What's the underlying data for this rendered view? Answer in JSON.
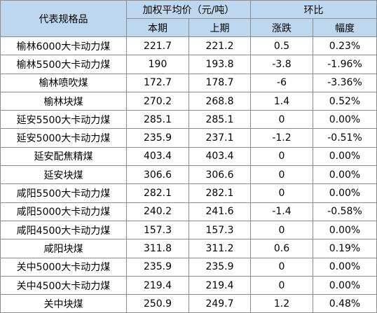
{
  "header": {
    "name_col": "代表规格品",
    "price_group": "加权平均价（元/吨）",
    "change_group": "环比",
    "current": "本期",
    "previous": "上期",
    "change": "涨跌",
    "pct": "幅度"
  },
  "rows": [
    {
      "name": "榆林6000大卡动力煤",
      "current": "221.7",
      "previous": "221.2",
      "change": "0.5",
      "pct": "0.23%"
    },
    {
      "name": "榆林5500大卡动力煤",
      "current": "190",
      "previous": "193.8",
      "change": "-3.8",
      "pct": "-1.96%"
    },
    {
      "name": "榆林喷吹煤",
      "current": "172.7",
      "previous": "178.7",
      "change": "-6",
      "pct": "-3.36%"
    },
    {
      "name": "榆林块煤",
      "current": "270.2",
      "previous": "268.8",
      "change": "1.4",
      "pct": "0.52%"
    },
    {
      "name": "延安5500大卡动力煤",
      "current": "285.1",
      "previous": "285.1",
      "change": "0",
      "pct": "0.00%"
    },
    {
      "name": "延安5000大卡动力煤",
      "current": "235.9",
      "previous": "237.1",
      "change": "-1.2",
      "pct": "-0.51%"
    },
    {
      "name": "延安配焦精煤",
      "current": "403.4",
      "previous": "403.4",
      "change": "0",
      "pct": "0.00%"
    },
    {
      "name": "延安块煤",
      "current": "306.6",
      "previous": "306.6",
      "change": "0",
      "pct": "0.00%"
    },
    {
      "name": "咸阳5500大卡动力煤",
      "current": "282.1",
      "previous": "282.1",
      "change": "0",
      "pct": "0.00%"
    },
    {
      "name": "咸阳5000大卡动力煤",
      "current": "240.2",
      "previous": "241.6",
      "change": "-1.4",
      "pct": "-0.58%"
    },
    {
      "name": "咸阳4500大卡动力煤",
      "current": "157.3",
      "previous": "157.3",
      "change": "0",
      "pct": "0.00%"
    },
    {
      "name": "咸阳块煤",
      "current": "311.8",
      "previous": "311.2",
      "change": "0.6",
      "pct": "0.19%"
    },
    {
      "name": "关中5000大卡动力煤",
      "current": "235.9",
      "previous": "235.9",
      "change": "0",
      "pct": "0.00%"
    },
    {
      "name": "关中4500大卡动力煤",
      "current": "219.4",
      "previous": "219.4",
      "change": "0",
      "pct": "0.00%"
    },
    {
      "name": "关中块煤",
      "current": "250.9",
      "previous": "249.7",
      "change": "1.2",
      "pct": "0.48%"
    }
  ]
}
